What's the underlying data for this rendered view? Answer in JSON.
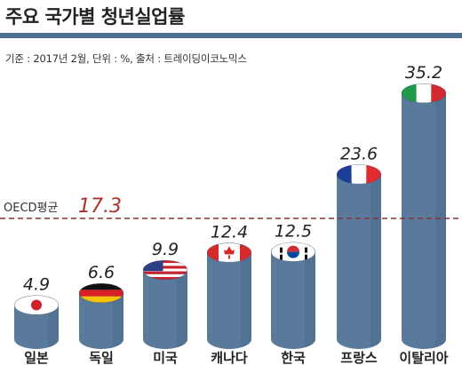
{
  "title": "주요 국가별 청년실업률",
  "subtitle": "기준 : 2017년 2월, 단위 : %, 출처 : 트레이딩이코노믹스",
  "colors": {
    "bar_body": "#5a7a9c",
    "bar_shadow": "#4a6a8c",
    "title_rule": "#4d6f96",
    "reference_line": "#8a3030",
    "reference_value": "#b03030"
  },
  "chart_data": {
    "type": "bar",
    "categories": [
      "일본",
      "독일",
      "미국",
      "캐나다",
      "한국",
      "프랑스",
      "이탈리아"
    ],
    "values": [
      4.9,
      6.6,
      9.9,
      12.4,
      12.5,
      23.6,
      35.2
    ],
    "value_labels": [
      "4.9",
      "6.6",
      "9.9",
      "12.4",
      "12.5",
      "23.6",
      "35.2"
    ],
    "flags": [
      "japan-flag",
      "germany-flag",
      "usa-flag",
      "canada-flag",
      "korea-flag",
      "france-flag",
      "italy-flag"
    ],
    "reference_line": {
      "label": "OECD평균",
      "value": 17.3,
      "value_label": "17.3",
      "style": "dashed"
    },
    "ylim": [
      0,
      35.2
    ],
    "grid": false,
    "legend": "none"
  }
}
